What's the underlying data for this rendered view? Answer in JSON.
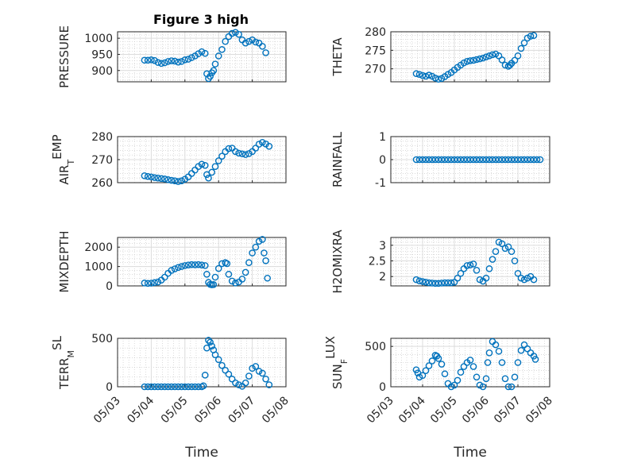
{
  "figure_title": "Figure 3 high",
  "marker_color": "#0072BD",
  "chart_data": [
    {
      "type": "scatter",
      "ylabel": "PRESSURE",
      "ylabel_sub": "",
      "ylabel_post": "",
      "xlabel": "",
      "xtick_labels": false,
      "xlim": [
        0,
        5
      ],
      "ylim": [
        865,
        1020
      ],
      "yticks": [
        900,
        950,
        1000
      ],
      "grid": true,
      "minor_grid": true,
      "x": [
        0.8,
        0.9,
        1.0,
        1.1,
        1.2,
        1.3,
        1.4,
        1.5,
        1.6,
        1.7,
        1.8,
        1.9,
        2.0,
        2.1,
        2.2,
        2.3,
        2.4,
        2.5,
        2.6,
        2.65,
        2.7,
        2.75,
        2.8,
        2.85,
        2.9,
        3.0,
        3.1,
        3.2,
        3.3,
        3.4,
        3.5,
        3.6,
        3.7,
        3.8,
        3.9,
        4.0,
        4.1,
        4.2,
        4.3,
        4.4
      ],
      "y": [
        932,
        932,
        933,
        931,
        925,
        922,
        924,
        928,
        930,
        929,
        926,
        928,
        933,
        935,
        940,
        945,
        952,
        958,
        953,
        890,
        875,
        882,
        893,
        900,
        920,
        945,
        965,
        990,
        1005,
        1015,
        1018,
        1012,
        995,
        985,
        990,
        995,
        988,
        985,
        975,
        955
      ]
    },
    {
      "type": "scatter",
      "ylabel": "THETA",
      "ylabel_sub": "",
      "ylabel_post": "",
      "xlabel": "",
      "xtick_labels": false,
      "xlim": [
        0,
        5
      ],
      "ylim": [
        266.5,
        280
      ],
      "yticks": [
        270,
        275,
        280
      ],
      "grid": true,
      "minor_grid": true,
      "x": [
        0.8,
        0.9,
        1.0,
        1.1,
        1.2,
        1.3,
        1.4,
        1.5,
        1.6,
        1.7,
        1.8,
        1.9,
        2.0,
        2.1,
        2.2,
        2.3,
        2.4,
        2.5,
        2.6,
        2.7,
        2.8,
        2.9,
        3.0,
        3.1,
        3.2,
        3.3,
        3.4,
        3.5,
        3.6,
        3.7,
        3.75,
        3.8,
        3.9,
        4.0,
        4.1,
        4.2,
        4.3,
        4.4,
        4.5
      ],
      "y": [
        268.7,
        268.5,
        268.2,
        268.0,
        268.3,
        268.0,
        267.5,
        267.2,
        267.4,
        267.9,
        268.5,
        269.0,
        269.7,
        270.4,
        271.0,
        271.6,
        272.0,
        272.2,
        272.3,
        272.5,
        272.7,
        272.9,
        273.2,
        273.5,
        273.8,
        274.0,
        273.5,
        272.4,
        271.0,
        270.7,
        271.0,
        271.5,
        272.3,
        273.5,
        275.5,
        277.0,
        278.3,
        278.8,
        279.0
      ]
    },
    {
      "type": "scatter",
      "ylabel": "AIR",
      "ylabel_sub": "T",
      "ylabel_post": "EMP",
      "xlabel": "",
      "xtick_labels": false,
      "xlim": [
        0,
        5
      ],
      "ylim": [
        260,
        280
      ],
      "yticks": [
        260,
        270,
        280
      ],
      "grid": true,
      "minor_grid": true,
      "x": [
        0.8,
        0.9,
        1.0,
        1.1,
        1.2,
        1.3,
        1.4,
        1.5,
        1.6,
        1.7,
        1.8,
        1.9,
        2.0,
        2.1,
        2.2,
        2.3,
        2.4,
        2.5,
        2.6,
        2.65,
        2.7,
        2.8,
        2.9,
        3.0,
        3.1,
        3.2,
        3.3,
        3.4,
        3.5,
        3.6,
        3.7,
        3.8,
        3.9,
        4.0,
        4.1,
        4.2,
        4.3,
        4.4,
        4.5
      ],
      "y": [
        263.0,
        262.7,
        262.5,
        262.2,
        262.0,
        261.8,
        261.6,
        261.3,
        261.0,
        260.8,
        260.5,
        260.8,
        261.5,
        262.5,
        264.0,
        265.5,
        267.0,
        268.0,
        267.5,
        263.5,
        262.0,
        264.5,
        267.0,
        269.5,
        271.5,
        273.5,
        274.8,
        275.0,
        273.5,
        272.8,
        272.5,
        272.2,
        272.6,
        273.5,
        275.0,
        276.7,
        277.5,
        276.8,
        275.8
      ]
    },
    {
      "type": "scatter",
      "ylabel": "RAINFALL",
      "ylabel_sub": "",
      "ylabel_post": "",
      "xlabel": "",
      "xtick_labels": false,
      "xlim": [
        0,
        5
      ],
      "ylim": [
        -1,
        1
      ],
      "yticks": [
        -1,
        0,
        1
      ],
      "grid": true,
      "minor_grid": true,
      "x": [
        0.8,
        0.9,
        1.0,
        1.1,
        1.2,
        1.3,
        1.4,
        1.5,
        1.6,
        1.7,
        1.8,
        1.9,
        2.0,
        2.1,
        2.2,
        2.3,
        2.4,
        2.5,
        2.6,
        2.7,
        2.8,
        2.9,
        3.0,
        3.1,
        3.2,
        3.3,
        3.4,
        3.5,
        3.6,
        3.7,
        3.8,
        3.9,
        4.0,
        4.1,
        4.2,
        4.3,
        4.4,
        4.5,
        4.6,
        4.7
      ],
      "y": [
        0,
        0,
        0,
        0,
        0,
        0,
        0,
        0,
        0,
        0,
        0,
        0,
        0,
        0,
        0,
        0,
        0,
        0,
        0,
        0,
        0,
        0,
        0,
        0,
        0,
        0,
        0,
        0,
        0,
        0,
        0,
        0,
        0,
        0,
        0,
        0,
        0,
        0,
        0,
        0
      ]
    },
    {
      "type": "scatter",
      "ylabel": "MIXDEPTH",
      "ylabel_sub": "",
      "ylabel_post": "",
      "xlabel": "",
      "xtick_labels": false,
      "xlim": [
        0,
        5
      ],
      "ylim": [
        0,
        2500
      ],
      "yticks": [
        0,
        1000,
        2000
      ],
      "grid": true,
      "minor_grid": true,
      "x": [
        0.8,
        0.9,
        1.0,
        1.1,
        1.2,
        1.3,
        1.4,
        1.5,
        1.6,
        1.7,
        1.8,
        1.9,
        2.0,
        2.1,
        2.2,
        2.3,
        2.4,
        2.5,
        2.6,
        2.65,
        2.7,
        2.75,
        2.8,
        2.85,
        2.9,
        3.0,
        3.1,
        3.2,
        3.25,
        3.3,
        3.4,
        3.5,
        3.6,
        3.7,
        3.8,
        3.9,
        4.0,
        4.1,
        4.2,
        4.3,
        4.35,
        4.4,
        4.45
      ],
      "y": [
        150,
        130,
        140,
        170,
        200,
        300,
        450,
        650,
        800,
        880,
        950,
        1000,
        1050,
        1080,
        1100,
        1090,
        1100,
        1080,
        1050,
        600,
        180,
        80,
        60,
        70,
        450,
        900,
        1150,
        1200,
        1150,
        600,
        250,
        150,
        200,
        350,
        700,
        1200,
        1700,
        2000,
        2300,
        2400,
        1700,
        1300,
        400
      ]
    },
    {
      "type": "scatter",
      "ylabel": "H2OMIXRA",
      "ylabel_sub": "",
      "ylabel_post": "",
      "xlabel": "",
      "xtick_labels": false,
      "xlim": [
        0,
        5
      ],
      "ylim": [
        1.7,
        3.25
      ],
      "yticks": [
        2,
        2.5,
        3
      ],
      "grid": true,
      "minor_grid": true,
      "x": [
        0.8,
        0.9,
        1.0,
        1.1,
        1.2,
        1.3,
        1.4,
        1.5,
        1.6,
        1.7,
        1.8,
        1.9,
        2.0,
        2.1,
        2.2,
        2.3,
        2.4,
        2.5,
        2.6,
        2.7,
        2.8,
        2.9,
        3.0,
        3.1,
        3.2,
        3.3,
        3.4,
        3.5,
        3.6,
        3.7,
        3.8,
        3.9,
        4.0,
        4.1,
        4.2,
        4.3,
        4.4,
        4.5
      ],
      "y": [
        1.9,
        1.86,
        1.84,
        1.82,
        1.8,
        1.79,
        1.78,
        1.78,
        1.79,
        1.8,
        1.8,
        1.8,
        1.82,
        1.95,
        2.1,
        2.25,
        2.35,
        2.37,
        2.4,
        2.2,
        1.9,
        1.85,
        1.95,
        2.25,
        2.55,
        2.8,
        3.1,
        3.05,
        2.9,
        2.95,
        2.8,
        2.5,
        2.1,
        1.95,
        1.9,
        1.95,
        2.0,
        1.9
      ]
    },
    {
      "type": "scatter",
      "ylabel": "TERR",
      "ylabel_sub": "M",
      "ylabel_post": "SL",
      "xlabel": "Time",
      "xtick_labels": true,
      "xlim": [
        0,
        5
      ],
      "ylim": [
        0,
        500
      ],
      "yticks": [
        0,
        500
      ],
      "grid": true,
      "minor_grid": true,
      "x": [
        0.8,
        0.9,
        1.0,
        1.1,
        1.2,
        1.3,
        1.4,
        1.5,
        1.6,
        1.7,
        1.8,
        1.9,
        2.0,
        2.1,
        2.2,
        2.3,
        2.4,
        2.5,
        2.55,
        2.6,
        2.65,
        2.7,
        2.75,
        2.8,
        2.85,
        2.9,
        3.0,
        3.1,
        3.2,
        3.3,
        3.4,
        3.5,
        3.6,
        3.7,
        3.8,
        3.9,
        4.0,
        4.1,
        4.2,
        4.3,
        4.4,
        4.5
      ],
      "y": [
        0,
        0,
        0,
        0,
        0,
        0,
        0,
        0,
        0,
        0,
        0,
        0,
        0,
        0,
        0,
        0,
        0,
        0,
        10,
        120,
        400,
        480,
        460,
        420,
        380,
        330,
        280,
        220,
        170,
        130,
        80,
        40,
        20,
        5,
        40,
        110,
        190,
        210,
        160,
        140,
        80,
        20
      ]
    },
    {
      "type": "scatter",
      "ylabel": "SUN",
      "ylabel_sub": "F",
      "ylabel_post": "LUX",
      "xlabel": "Time",
      "xtick_labels": true,
      "xlim": [
        0,
        5
      ],
      "ylim": [
        0,
        600
      ],
      "yticks": [
        0,
        500
      ],
      "grid": true,
      "minor_grid": true,
      "x": [
        0.8,
        0.85,
        0.9,
        1.0,
        1.1,
        1.2,
        1.3,
        1.4,
        1.45,
        1.5,
        1.6,
        1.7,
        1.8,
        1.9,
        2.0,
        2.1,
        2.2,
        2.3,
        2.4,
        2.5,
        2.6,
        2.7,
        2.8,
        2.9,
        3.0,
        3.05,
        3.1,
        3.2,
        3.3,
        3.4,
        3.5,
        3.6,
        3.7,
        3.8,
        3.9,
        4.0,
        4.1,
        4.2,
        4.3,
        4.4,
        4.5,
        4.55
      ],
      "y": [
        210,
        170,
        120,
        140,
        200,
        260,
        320,
        390,
        380,
        350,
        280,
        160,
        40,
        0,
        20,
        80,
        180,
        250,
        300,
        330,
        250,
        120,
        20,
        0,
        100,
        300,
        420,
        560,
        520,
        440,
        300,
        100,
        0,
        0,
        120,
        300,
        450,
        520,
        470,
        420,
        380,
        340
      ]
    }
  ],
  "x_tick_labels": [
    "05/03",
    "05/04",
    "05/05",
    "05/06",
    "05/07",
    "05/08"
  ]
}
